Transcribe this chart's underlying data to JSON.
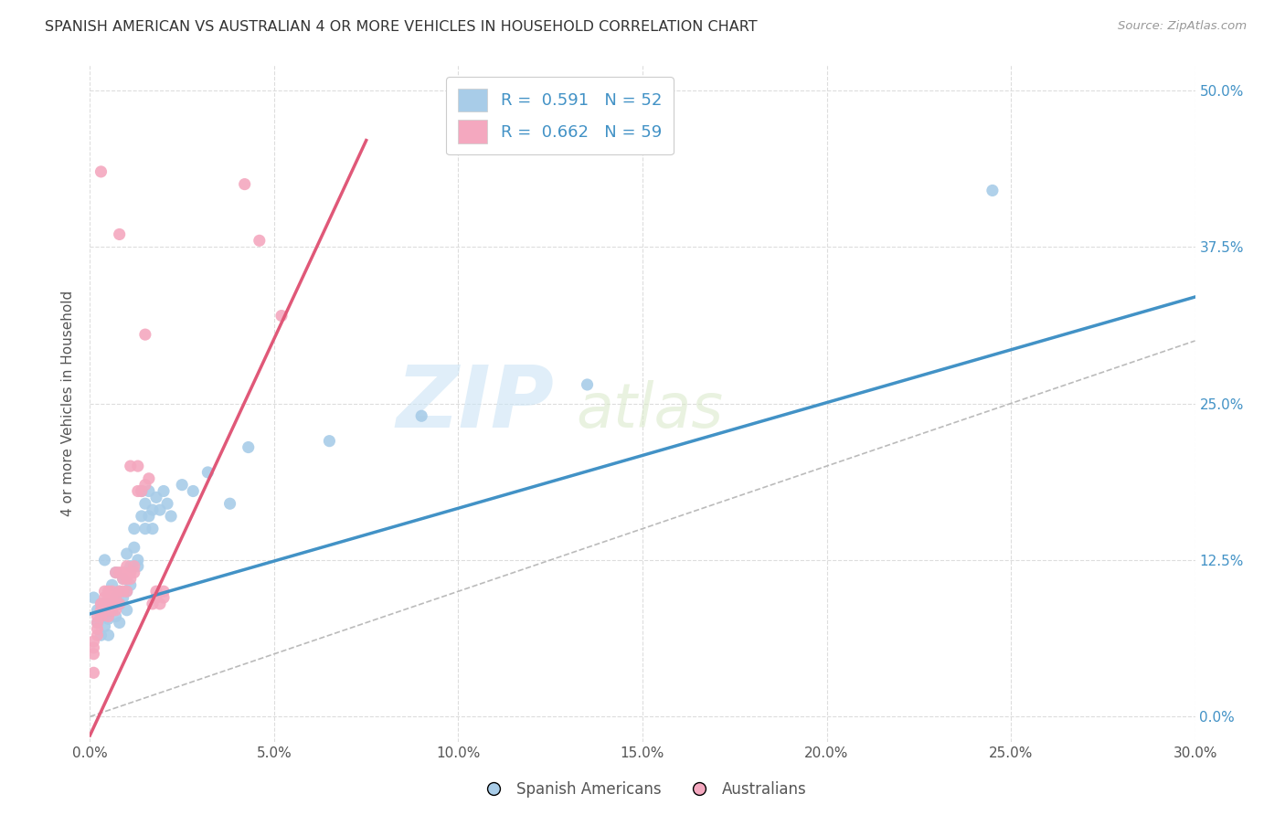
{
  "title": "SPANISH AMERICAN VS AUSTRALIAN 4 OR MORE VEHICLES IN HOUSEHOLD CORRELATION CHART",
  "source": "Source: ZipAtlas.com",
  "xlim": [
    0.0,
    0.3
  ],
  "ylim": [
    -0.02,
    0.52
  ],
  "ylabel": "4 or more Vehicles in Household",
  "legend_label1": "Spanish Americans",
  "legend_label2": "Australians",
  "r1": 0.591,
  "n1": 52,
  "r2": 0.662,
  "n2": 59,
  "color1": "#a8cce8",
  "color2": "#f4a8bf",
  "line_color1": "#4292c6",
  "line_color2": "#e05878",
  "diag_color": "#bbbbbb",
  "watermark_zip": "ZIP",
  "watermark_atlas": "atlas",
  "blue_line_x": [
    0.0,
    0.3
  ],
  "blue_line_y": [
    0.082,
    0.335
  ],
  "pink_line_x": [
    0.0,
    0.075
  ],
  "pink_line_y": [
    -0.015,
    0.46
  ],
  "diag_line_x": [
    0.0,
    0.3
  ],
  "diag_line_y": [
    0.0,
    0.3
  ],
  "blue_points": [
    [
      0.001,
      0.095
    ],
    [
      0.002,
      0.075
    ],
    [
      0.002,
      0.085
    ],
    [
      0.003,
      0.065
    ],
    [
      0.003,
      0.09
    ],
    [
      0.004,
      0.08
    ],
    [
      0.004,
      0.072
    ],
    [
      0.004,
      0.125
    ],
    [
      0.005,
      0.065
    ],
    [
      0.005,
      0.09
    ],
    [
      0.005,
      0.078
    ],
    [
      0.006,
      0.085
    ],
    [
      0.006,
      0.105
    ],
    [
      0.007,
      0.095
    ],
    [
      0.007,
      0.08
    ],
    [
      0.007,
      0.115
    ],
    [
      0.008,
      0.1
    ],
    [
      0.008,
      0.09
    ],
    [
      0.008,
      0.075
    ],
    [
      0.009,
      0.11
    ],
    [
      0.009,
      0.095
    ],
    [
      0.01,
      0.13
    ],
    [
      0.01,
      0.1
    ],
    [
      0.01,
      0.085
    ],
    [
      0.011,
      0.12
    ],
    [
      0.011,
      0.105
    ],
    [
      0.012,
      0.15
    ],
    [
      0.012,
      0.135
    ],
    [
      0.013,
      0.125
    ],
    [
      0.013,
      0.12
    ],
    [
      0.014,
      0.18
    ],
    [
      0.014,
      0.16
    ],
    [
      0.015,
      0.17
    ],
    [
      0.015,
      0.15
    ],
    [
      0.016,
      0.18
    ],
    [
      0.016,
      0.16
    ],
    [
      0.017,
      0.165
    ],
    [
      0.017,
      0.15
    ],
    [
      0.018,
      0.175
    ],
    [
      0.019,
      0.165
    ],
    [
      0.02,
      0.18
    ],
    [
      0.021,
      0.17
    ],
    [
      0.022,
      0.16
    ],
    [
      0.025,
      0.185
    ],
    [
      0.028,
      0.18
    ],
    [
      0.032,
      0.195
    ],
    [
      0.038,
      0.17
    ],
    [
      0.043,
      0.215
    ],
    [
      0.065,
      0.22
    ],
    [
      0.09,
      0.24
    ],
    [
      0.135,
      0.265
    ],
    [
      0.245,
      0.42
    ]
  ],
  "pink_points": [
    [
      0.001,
      0.035
    ],
    [
      0.001,
      0.05
    ],
    [
      0.001,
      0.055
    ],
    [
      0.001,
      0.06
    ],
    [
      0.002,
      0.065
    ],
    [
      0.002,
      0.07
    ],
    [
      0.002,
      0.075
    ],
    [
      0.002,
      0.08
    ],
    [
      0.003,
      0.08
    ],
    [
      0.003,
      0.085
    ],
    [
      0.003,
      0.09
    ],
    [
      0.003,
      0.435
    ],
    [
      0.004,
      0.085
    ],
    [
      0.004,
      0.09
    ],
    [
      0.004,
      0.095
    ],
    [
      0.004,
      0.1
    ],
    [
      0.005,
      0.08
    ],
    [
      0.005,
      0.085
    ],
    [
      0.005,
      0.09
    ],
    [
      0.005,
      0.095
    ],
    [
      0.005,
      0.1
    ],
    [
      0.006,
      0.085
    ],
    [
      0.006,
      0.09
    ],
    [
      0.006,
      0.095
    ],
    [
      0.006,
      0.1
    ],
    [
      0.007,
      0.085
    ],
    [
      0.007,
      0.09
    ],
    [
      0.007,
      0.095
    ],
    [
      0.007,
      0.115
    ],
    [
      0.008,
      0.09
    ],
    [
      0.008,
      0.1
    ],
    [
      0.008,
      0.115
    ],
    [
      0.008,
      0.385
    ],
    [
      0.009,
      0.1
    ],
    [
      0.009,
      0.11
    ],
    [
      0.009,
      0.115
    ],
    [
      0.01,
      0.1
    ],
    [
      0.01,
      0.11
    ],
    [
      0.01,
      0.12
    ],
    [
      0.011,
      0.11
    ],
    [
      0.011,
      0.115
    ],
    [
      0.011,
      0.2
    ],
    [
      0.012,
      0.115
    ],
    [
      0.012,
      0.12
    ],
    [
      0.013,
      0.18
    ],
    [
      0.013,
      0.2
    ],
    [
      0.014,
      0.18
    ],
    [
      0.015,
      0.185
    ],
    [
      0.015,
      0.305
    ],
    [
      0.016,
      0.19
    ],
    [
      0.017,
      0.09
    ],
    [
      0.018,
      0.095
    ],
    [
      0.018,
      0.1
    ],
    [
      0.019,
      0.09
    ],
    [
      0.02,
      0.095
    ],
    [
      0.02,
      0.1
    ],
    [
      0.042,
      0.425
    ],
    [
      0.046,
      0.38
    ],
    [
      0.052,
      0.32
    ]
  ],
  "x_tick_vals": [
    0.0,
    0.05,
    0.1,
    0.15,
    0.2,
    0.25,
    0.3
  ],
  "x_tick_labels": [
    "0.0%",
    "5.0%",
    "10.0%",
    "15.0%",
    "20.0%",
    "25.0%",
    "30.0%"
  ],
  "y_tick_vals": [
    0.0,
    0.125,
    0.25,
    0.375,
    0.5
  ],
  "y_tick_labels": [
    "0.0%",
    "12.5%",
    "25.0%",
    "37.5%",
    "50.0%"
  ]
}
